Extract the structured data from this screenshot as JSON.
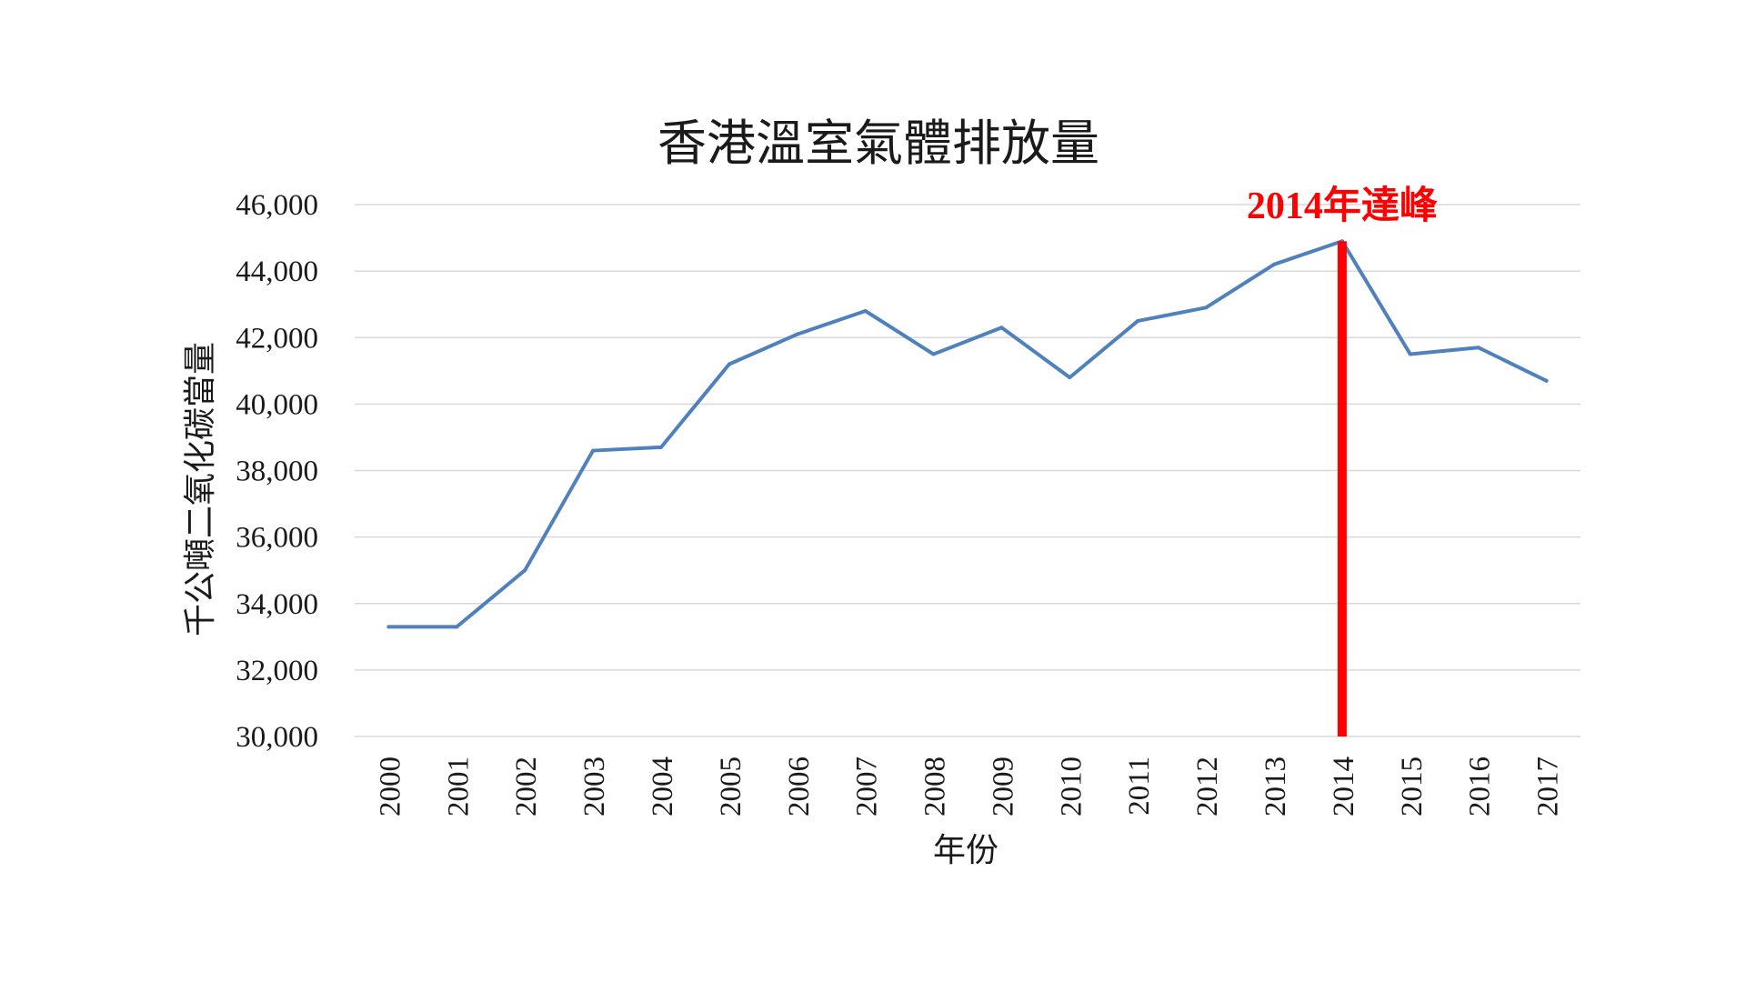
{
  "chart_data": {
    "type": "line",
    "title": "香港溫室氣體排放量",
    "xlabel": "年份",
    "ylabel": "千公噸二氧化碳當量",
    "ylim": [
      30000,
      46000
    ],
    "yticks": [
      "30,000",
      "32,000",
      "34,000",
      "36,000",
      "38,000",
      "40,000",
      "42,000",
      "44,000",
      "46,000"
    ],
    "ytick_values": [
      30000,
      32000,
      34000,
      36000,
      38000,
      40000,
      42000,
      44000,
      46000
    ],
    "grid": true,
    "legend": "none",
    "categories": [
      "2000",
      "2001",
      "2002",
      "2003",
      "2004",
      "2005",
      "2006",
      "2007",
      "2008",
      "2009",
      "2010",
      "2011",
      "2012",
      "2013",
      "2014",
      "2015",
      "2016",
      "2017"
    ],
    "series": [
      {
        "color": "#4f81bd",
        "values": [
          33300,
          33300,
          35000,
          38600,
          38700,
          41200,
          42100,
          42800,
          41500,
          42300,
          40800,
          42500,
          42900,
          44200,
          44900,
          41500,
          41700,
          40700
        ]
      }
    ],
    "annotation": {
      "text": "2014年達峰",
      "category": "2014",
      "color": "#ff0000"
    }
  }
}
